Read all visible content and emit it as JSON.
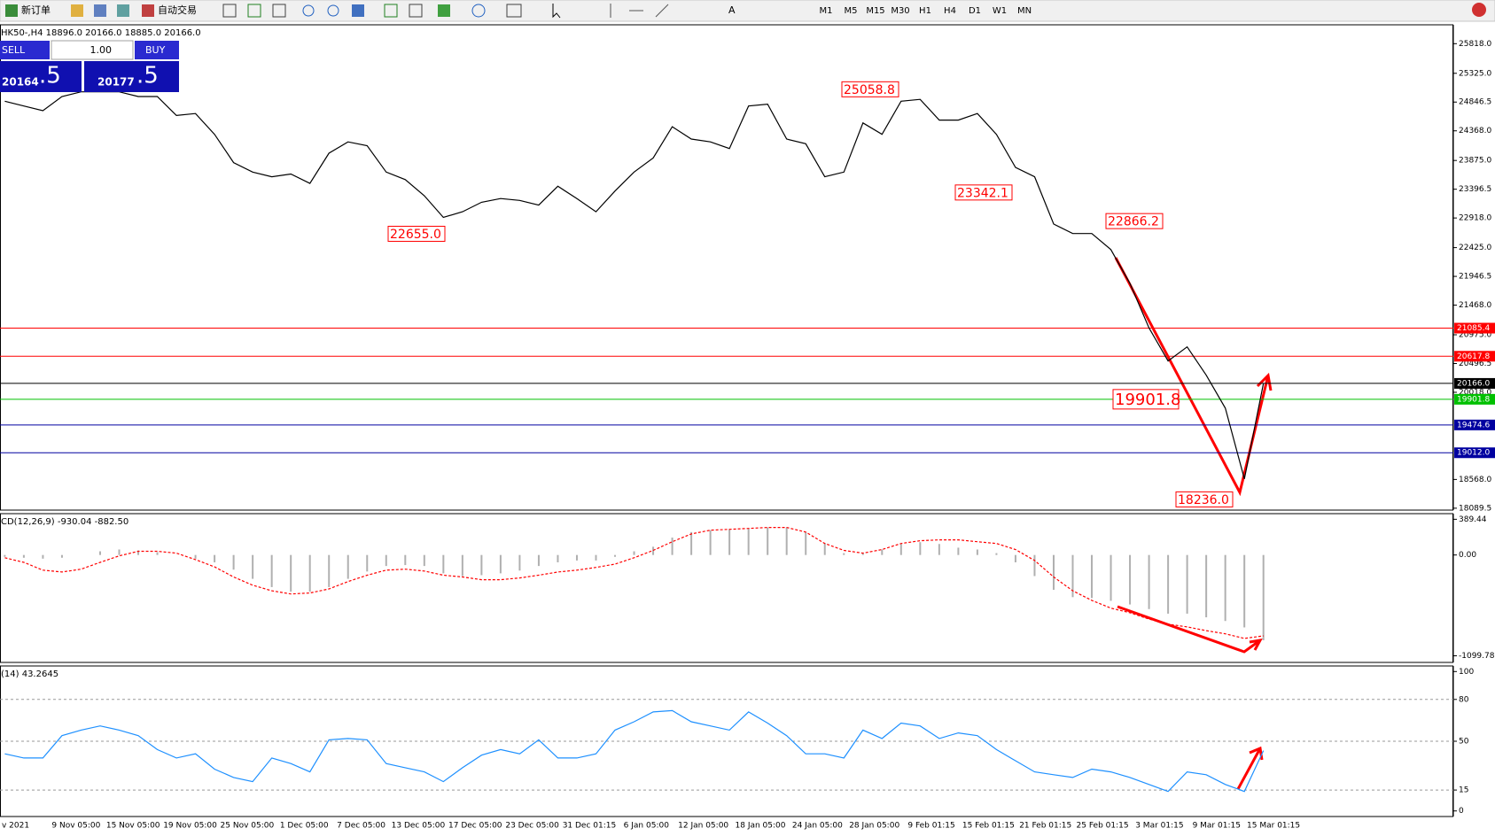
{
  "toolbar": {
    "new_order": "新订单",
    "auto_trading": "自动交易",
    "timeframes": [
      "M1",
      "M5",
      "M15",
      "M30",
      "H1",
      "H4",
      "D1",
      "W1",
      "MN"
    ]
  },
  "trade_panel": {
    "sell": "SELL",
    "lot": "1.00",
    "buy": "BUY",
    "sell_price": {
      "main": "20164",
      "fraction": ".5"
    },
    "buy_price": {
      "main": "20177",
      "fraction": ".5"
    }
  },
  "time_axis": {
    "labels": [
      "v 2021",
      "9 Nov 05:00",
      "15 Nov 05:00",
      "19 Nov 05:00",
      "25 Nov 05:00",
      "1 Dec 05:00",
      "7 Dec 05:00",
      "13 Dec 05:00",
      "17 Dec 05:00",
      "23 Dec 05:00",
      "31 Dec 01:15",
      "6 Jan 05:00",
      "12 Jan 05:00",
      "18 Jan 05:00",
      "24 Jan 05:00",
      "28 Jan 05:00",
      "9 Feb 01:15",
      "15 Feb 01:15",
      "21 Feb 01:15",
      "25 Feb 01:15",
      "3 Mar 01:15",
      "9 Mar 01:15",
      "15 Mar 01:15"
    ]
  },
  "chart_data": [
    {
      "type": "line",
      "title": "HK50-,H4  18896.0 20166.0 18885.0 20166.0",
      "series": [
        {
          "color": "#000000",
          "values": [
            24860,
            24781,
            24703,
            24938,
            25017,
            25017,
            25017,
            24938,
            24938,
            24624,
            24655,
            24310,
            23839,
            23682,
            23603,
            23650,
            23493,
            23996,
            24184,
            24121,
            23682,
            23556,
            23289,
            22927,
            23022,
            23179,
            23242,
            23210,
            23132,
            23446,
            23242,
            23022,
            23367,
            23682,
            23917,
            24436,
            24231,
            24184,
            24074,
            24781,
            24812,
            24231,
            24153,
            23603,
            23682,
            24499,
            24310,
            24860,
            24891,
            24546,
            24546,
            24655,
            24310,
            23760,
            23603,
            22817,
            22660,
            22660,
            22393,
            21827,
            21089,
            20539,
            20774,
            20303,
            19754,
            18576,
            20166
          ]
        }
      ],
      "ylim": [
        18058,
        26132
      ],
      "yticks": [
        {
          "value": 25818,
          "label": "25818.0"
        },
        {
          "value": 25325,
          "label": "25325.0"
        },
        24846.5,
        {
          "value": 24368,
          "label": "24368.0"
        },
        {
          "value": 23875,
          "label": "23875.0"
        },
        23396.5,
        {
          "value": 22918,
          "label": "22918.0"
        },
        {
          "value": 22425,
          "label": "22425.0"
        },
        21946.5,
        {
          "value": 21468,
          "label": "21468.0"
        },
        {
          "value": 20975,
          "label": "20975.0"
        },
        20496.5,
        {
          "value": 20018,
          "label": "20018.0"
        },
        {
          "value": 18568,
          "label": "18568.0"
        },
        18089.5
      ],
      "price_lines": [
        {
          "value": 21085.4,
          "color": "#ff0000"
        },
        {
          "value": 20617.8,
          "color": "#ff0000"
        },
        {
          "value": 20166,
          "label": "20166.0",
          "color": "#000000"
        },
        {
          "value": 19901.8,
          "color": "#00c000"
        },
        {
          "value": 19474.6,
          "color": "#0000a0"
        },
        {
          "value": 19012,
          "label": "19012.0",
          "color": "#0000a0"
        }
      ],
      "annotations": [
        {
          "value": 22655,
          "label": "22655.0"
        },
        {
          "value": 25058.8,
          "label": "25058.8"
        },
        {
          "value": 23342.1,
          "label": "23342.1"
        },
        {
          "value": 22866.2,
          "label": "22866.2"
        },
        {
          "value": 19901.8,
          "label": "19901.8"
        },
        {
          "value": 18236,
          "label": "18236.0"
        }
      ]
    },
    {
      "type": "macd",
      "title": "CD(12,26,9) -930.04 -882.50",
      "series": [
        {
          "color": "#b0b0b0",
          "values": [
            -20,
            -30,
            -40,
            -30,
            0,
            40,
            60,
            50,
            30,
            0,
            -40,
            -80,
            -160,
            -260,
            -350,
            -400,
            -400,
            -350,
            -260,
            -180,
            -120,
            -110,
            -120,
            -200,
            -230,
            -220,
            -200,
            -170,
            -120,
            -80,
            -60,
            -60,
            -20,
            40,
            90,
            190,
            250,
            270,
            280,
            290,
            300,
            300,
            250,
            130,
            20,
            20,
            60,
            120,
            140,
            120,
            80,
            60,
            20,
            -80,
            -230,
            -380,
            -460,
            -470,
            -500,
            -540,
            -590,
            -640,
            -640,
            -680,
            -720,
            -790,
            -930.04
          ]
        },
        {
          "color": "#ff0000",
          "values": [
            -30,
            -80,
            -165,
            -186,
            -155,
            -80,
            -10,
            40,
            40,
            20,
            -50,
            -130,
            -240,
            -330,
            -390,
            -425,
            -415,
            -370,
            -290,
            -220,
            -165,
            -155,
            -175,
            -220,
            -240,
            -270,
            -270,
            -250,
            -220,
            -186,
            -165,
            -135,
            -100,
            -30,
            50,
            145,
            230,
            270,
            280,
            290,
            300,
            300,
            250,
            125,
            50,
            20,
            60,
            125,
            155,
            165,
            165,
            145,
            125,
            60,
            -60,
            -240,
            -390,
            -495,
            -580,
            -630,
            -700,
            -755,
            -785,
            -825,
            -860,
            -910,
            -882.5
          ]
        }
      ],
      "ylim": [
        -1172,
        451
      ],
      "yticks": [
        389.44,
        {
          "value": 0,
          "label": "0.00"
        },
        -1099.78
      ]
    },
    {
      "type": "line",
      "title": "(14) 43.2645",
      "series": [
        {
          "color": "#1e90ff",
          "values": [
            41,
            38,
            38,
            54,
            58,
            61,
            58,
            54,
            44,
            38,
            41,
            30,
            24,
            21,
            38,
            34,
            28,
            51,
            52,
            51,
            34,
            31,
            28,
            21,
            31,
            40,
            44,
            41,
            51,
            38,
            38,
            41,
            58,
            64,
            71,
            72,
            64,
            61,
            58,
            71,
            63,
            54,
            41,
            41,
            38,
            58,
            52,
            63,
            61,
            52,
            56,
            54,
            44,
            36,
            28,
            26,
            24,
            30,
            28,
            24,
            19,
            14,
            28,
            26,
            19,
            14,
            43.2645
          ]
        }
      ],
      "ylim": [
        -4,
        104
      ],
      "yticks": [
        100,
        80,
        50,
        15,
        0
      ],
      "grid": true
    }
  ]
}
